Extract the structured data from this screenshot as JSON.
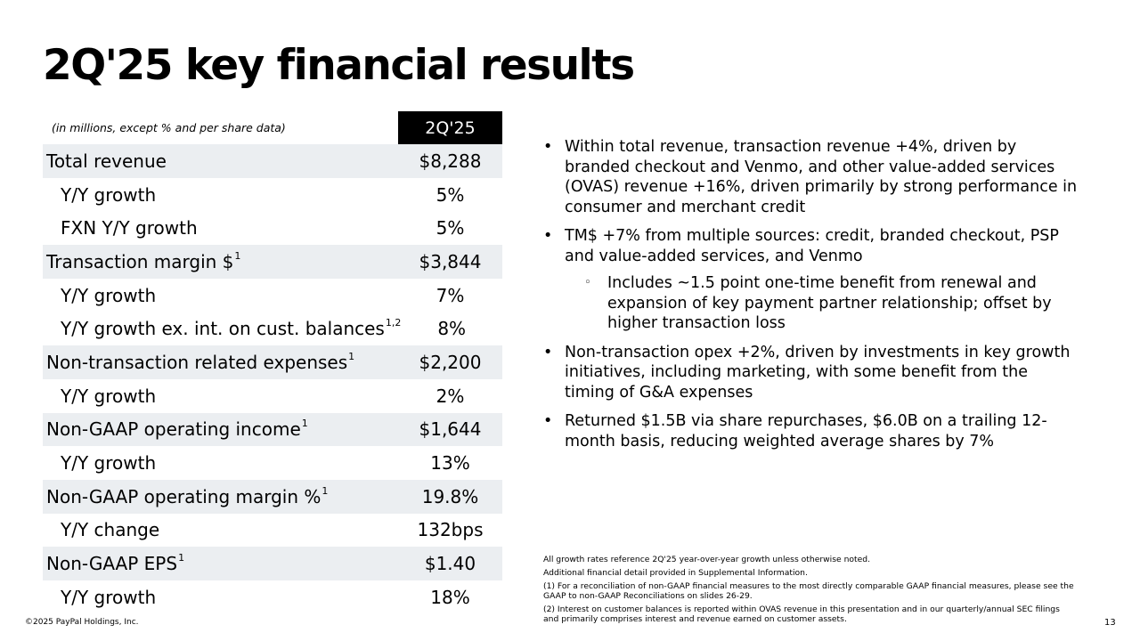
{
  "title": "2Q'25 key financial results",
  "table": {
    "units_note": "(in millions, except % and per share data)",
    "column_header": "2Q'25",
    "rows": [
      {
        "label": "Total revenue",
        "sup": "",
        "value": "$8,288"
      },
      {
        "label": "Y/Y growth",
        "sup": "",
        "value": "5%"
      },
      {
        "label": "FXN Y/Y growth",
        "sup": "",
        "value": "5%"
      },
      {
        "label": "Transaction margin $",
        "sup": "1",
        "value": "$3,844"
      },
      {
        "label": "Y/Y growth",
        "sup": "",
        "value": "7%"
      },
      {
        "label": "Y/Y growth ex. int. on cust. balances",
        "sup": "1,2",
        "value": "8%"
      },
      {
        "label": "Non-transaction related expenses",
        "sup": "1",
        "value": "$2,200"
      },
      {
        "label": "Y/Y growth",
        "sup": "",
        "value": "2%"
      },
      {
        "label": "Non-GAAP operating income",
        "sup": "1",
        "value": "$1,644"
      },
      {
        "label": "Y/Y growth",
        "sup": "",
        "value": "13%"
      },
      {
        "label": "Non-GAAP operating margin %",
        "sup": "1",
        "value": "19.8%"
      },
      {
        "label": "Y/Y change",
        "sup": "",
        "value": "132bps"
      },
      {
        "label": "Non-GAAP EPS",
        "sup": "1",
        "value": "$1.40"
      },
      {
        "label": "Y/Y growth",
        "sup": "",
        "value": "18%"
      }
    ]
  },
  "bullets": [
    "Within total revenue, transaction revenue +4%, driven by branded checkout and Venmo, and other value-added services (OVAS) revenue +16%, driven primarily by strong performance in consumer and merchant credit",
    "TM$ +7% from multiple sources: credit, branded checkout, PSP and value-added services, and Venmo",
    "Non-transaction opex +2%, driven by investments in key growth initiatives, including marketing, with some benefit from the timing of G&A expenses",
    "Returned $1.5B via share repurchases, $6.0B on a trailing 12-month basis, reducing weighted average shares by 7%"
  ],
  "sub_bullet": "Includes ~1.5 point one-time benefit from renewal and expansion of key payment partner relationship; offset by higher transaction loss",
  "notes": [
    "All growth rates reference 2Q'25 year-over-year growth unless otherwise noted.",
    "Additional financial detail provided in Supplemental Information.",
    "(1) For a reconciliation of non-GAAP financial measures to the most directly comparable GAAP financial measures, please see the GAAP to non-GAAP Reconciliations on slides 26-29.",
    "(2) Interest on customer balances is reported within OVAS revenue in this presentation and in our quarterly/annual SEC filings and primarily comprises interest and revenue earned on customer assets."
  ],
  "footer": {
    "copyright": "©2025 PayPal Holdings, Inc.",
    "page_number": "13"
  }
}
